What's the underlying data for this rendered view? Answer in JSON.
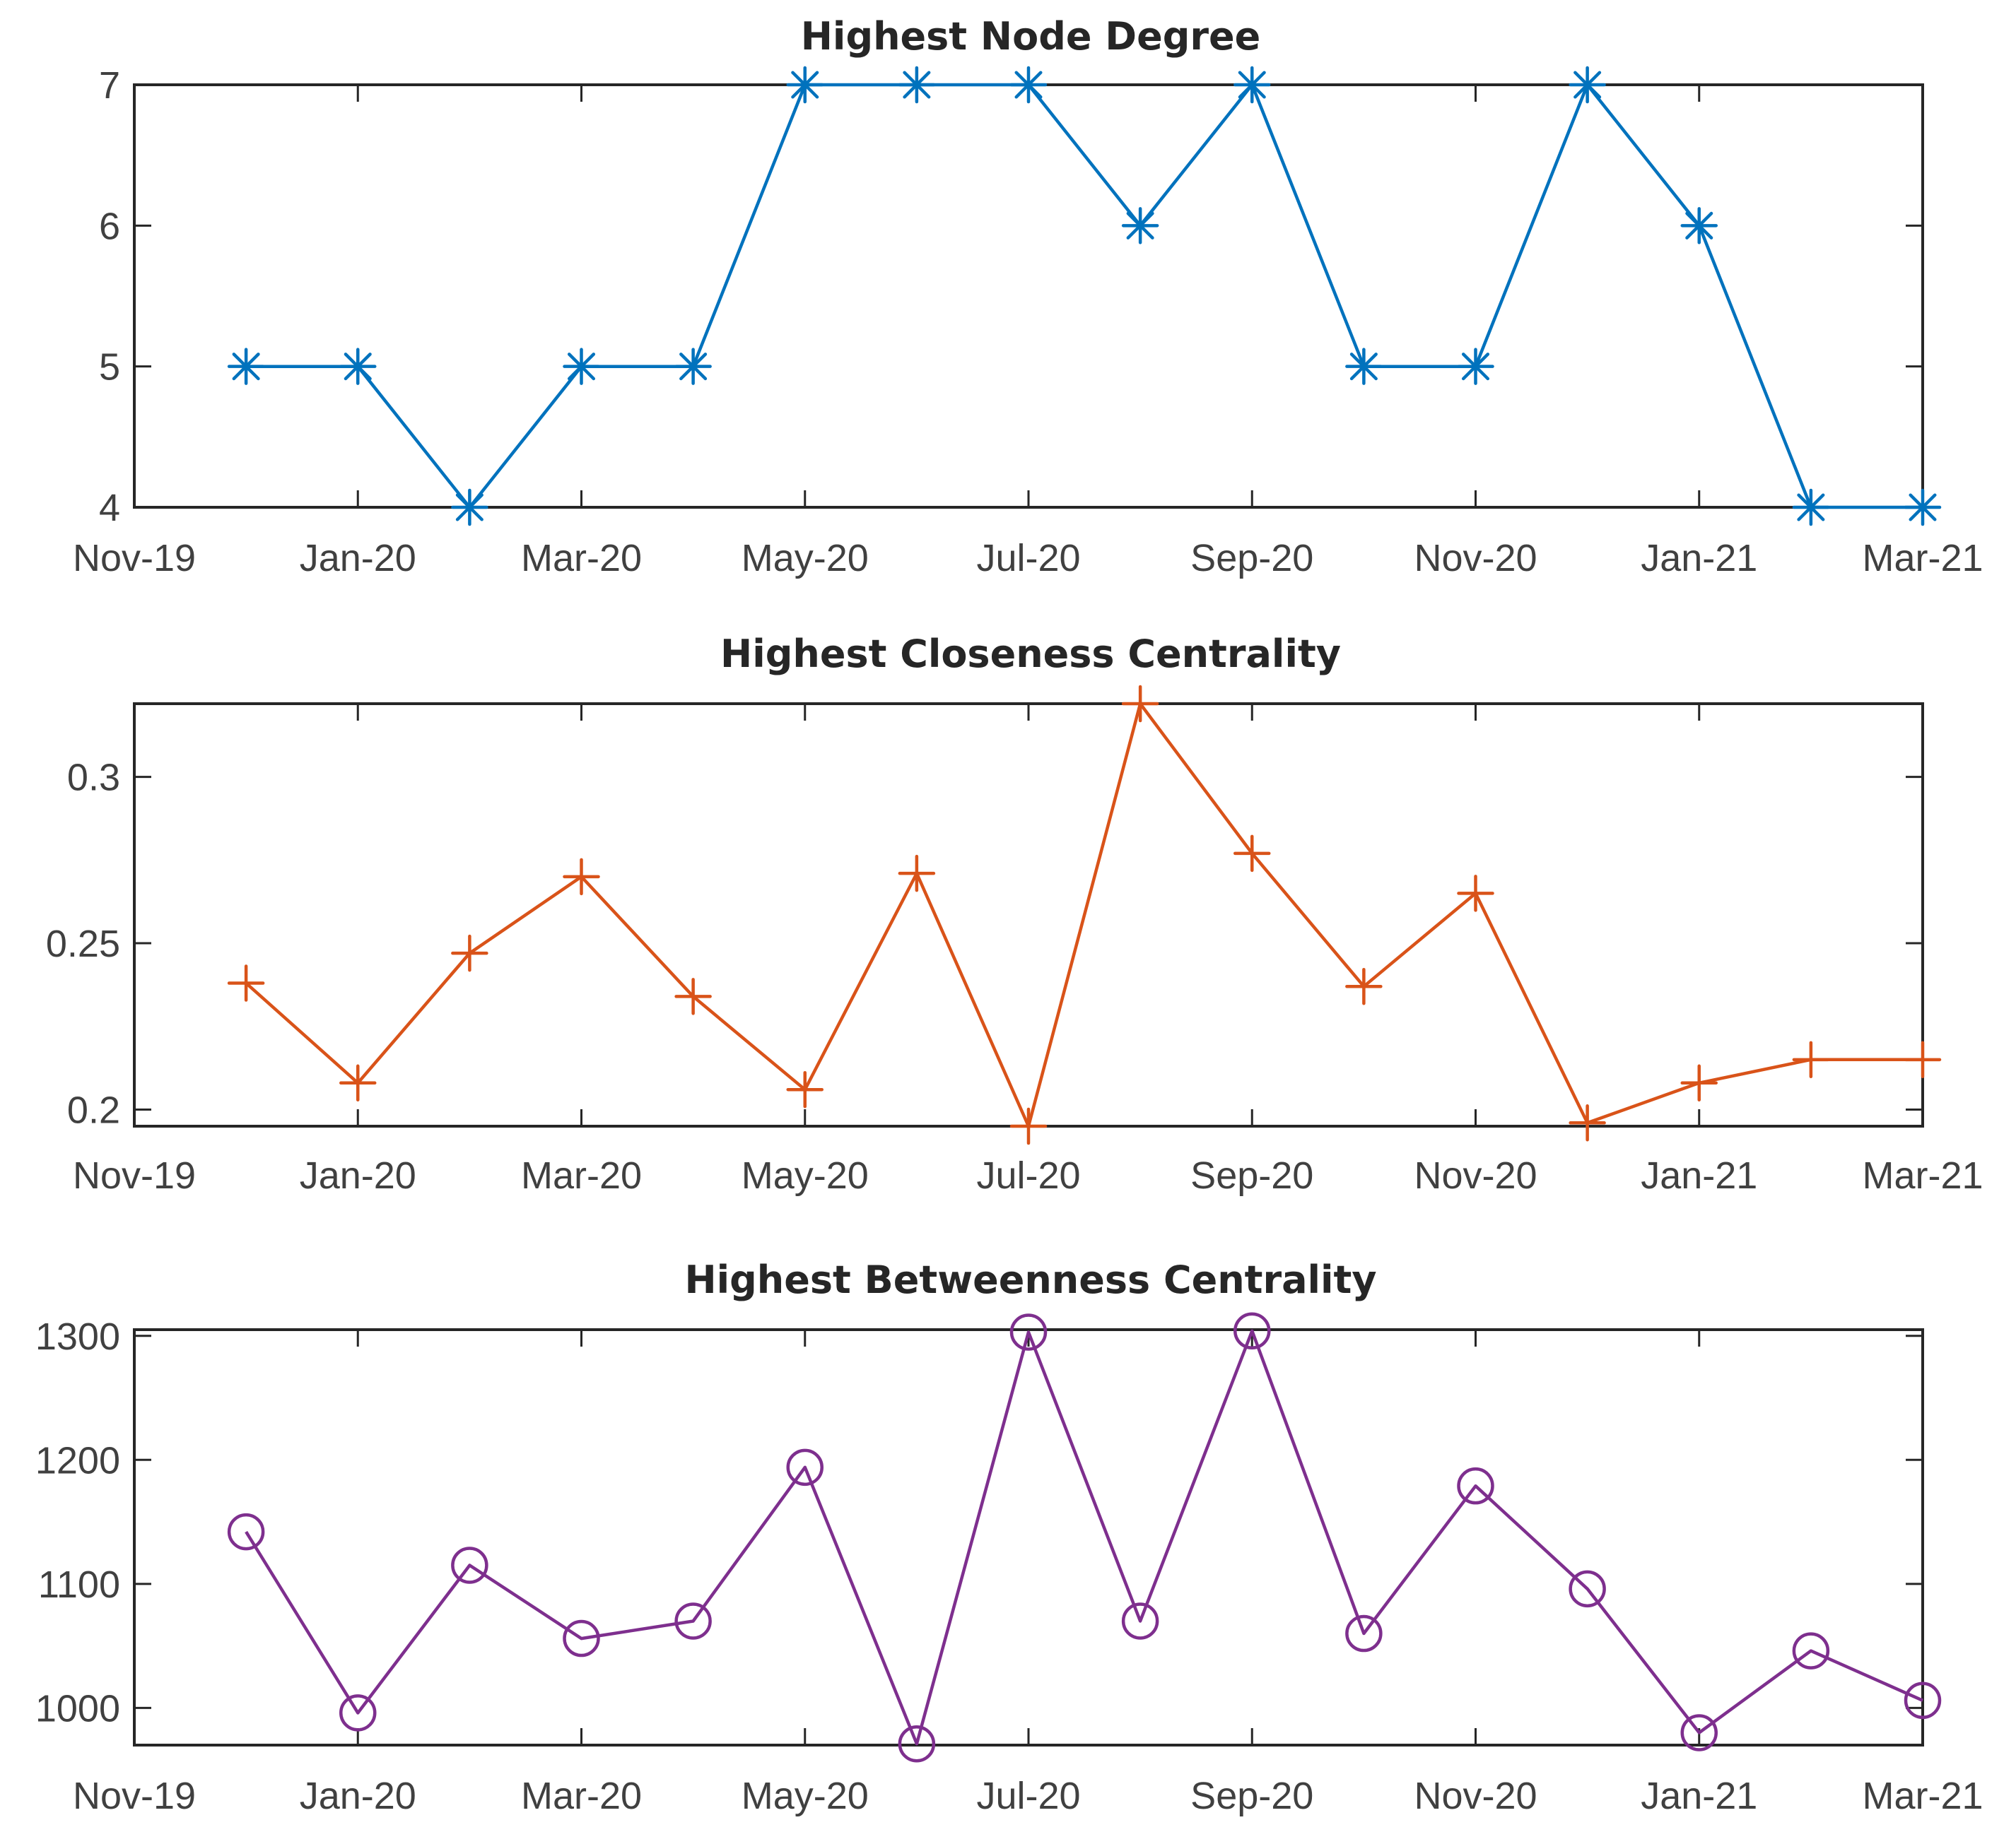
{
  "chart_data": [
    {
      "type": "line",
      "title": "Highest Node Degree",
      "xlabel": "",
      "ylabel": "",
      "marker": "asterisk",
      "color": "#0072BD",
      "grid": false,
      "x_tick_labels": [
        "Nov-19",
        "Jan-20",
        "Mar-20",
        "May-20",
        "Jul-20",
        "Sep-20",
        "Nov-20",
        "Jan-21",
        "Mar-21"
      ],
      "x_range_months": [
        0,
        16
      ],
      "ylim": [
        4,
        7
      ],
      "y_ticks": [
        4,
        5,
        6,
        7
      ],
      "y_tick_labels": [
        "4",
        "5",
        "6",
        "7"
      ],
      "series": [
        {
          "name": "Highest Node Degree",
          "x_months": [
            1,
            2,
            3,
            4,
            5,
            6,
            7,
            8,
            9,
            10,
            11,
            12,
            13,
            14,
            15,
            16
          ],
          "values": [
            5,
            5,
            4,
            5,
            5,
            7,
            7,
            7,
            6,
            7,
            5,
            5,
            7,
            6,
            4,
            4
          ]
        }
      ]
    },
    {
      "type": "line",
      "title": "Highest Closeness Centrality",
      "xlabel": "",
      "ylabel": "",
      "marker": "plus",
      "color": "#D95319",
      "grid": false,
      "x_tick_labels": [
        "Nov-19",
        "Jan-20",
        "Mar-20",
        "May-20",
        "Jul-20",
        "Sep-20",
        "Nov-20",
        "Jan-21",
        "Mar-21"
      ],
      "x_range_months": [
        0,
        16
      ],
      "ylim": [
        0.195,
        0.322
      ],
      "y_ticks": [
        0.2,
        0.25,
        0.3
      ],
      "y_tick_labels": [
        "0.2",
        "0.25",
        "0.3"
      ],
      "series": [
        {
          "name": "Highest Closeness Centrality",
          "x_months": [
            1,
            2,
            3,
            4,
            5,
            6,
            7,
            8,
            9,
            10,
            11,
            12,
            13,
            14,
            15,
            16
          ],
          "values": [
            0.238,
            0.208,
            0.247,
            0.27,
            0.234,
            0.206,
            0.271,
            0.195,
            0.322,
            0.277,
            0.237,
            0.265,
            0.196,
            0.208,
            0.215,
            0.215
          ]
        }
      ]
    },
    {
      "type": "line",
      "title": "Highest Betweenness Centrality",
      "xlabel": "",
      "ylabel": "",
      "marker": "circle",
      "color": "#7E2F8E",
      "grid": false,
      "x_tick_labels": [
        "Nov-19",
        "Jan-20",
        "Mar-20",
        "May-20",
        "Jul-20",
        "Sep-20",
        "Nov-20",
        "Jan-21",
        "Mar-21"
      ],
      "x_range_months": [
        0,
        16
      ],
      "ylim": [
        970,
        1305
      ],
      "y_ticks": [
        1000,
        1100,
        1200,
        1300
      ],
      "y_tick_labels": [
        "1000",
        "1100",
        "1200",
        "1300"
      ],
      "series": [
        {
          "name": "Highest Betweenness Centrality",
          "x_months": [
            1,
            2,
            3,
            4,
            5,
            6,
            7,
            8,
            9,
            10,
            11,
            12,
            13,
            14,
            15,
            16
          ],
          "values": [
            1142,
            996,
            1115,
            1056,
            1070,
            1194,
            971,
            1303,
            1070,
            1304,
            1060,
            1179,
            1096,
            980,
            1046,
            1006
          ]
        }
      ]
    }
  ]
}
